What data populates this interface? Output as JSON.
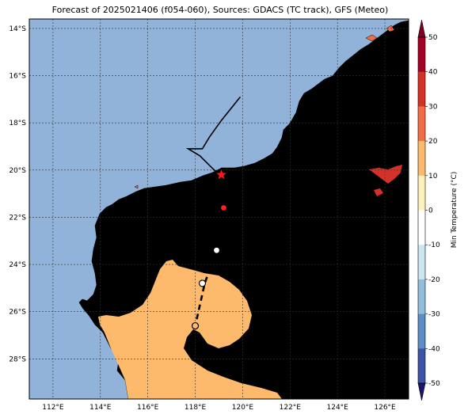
{
  "title": "Forecast of 2025021406 (f054-060), Sources: GDACS (TC track), GFS (Meteo)",
  "map": {
    "lat_ticks": [
      "14°S",
      "16°S",
      "18°S",
      "20°S",
      "22°S",
      "24°S",
      "26°S",
      "28°S"
    ],
    "lon_ticks": [
      "112°E",
      "114°E",
      "116°E",
      "118°E",
      "120°E",
      "122°E",
      "124°E",
      "126°E"
    ],
    "lon_range": [
      111,
      127
    ],
    "lat_range": [
      -29.7,
      -13.6
    ],
    "ocean_color": "#91b3d9",
    "land_color_20_30": "#f36d43",
    "land_color_10_20": "#fdb96c",
    "land_color_30_40": "#d63128"
  },
  "track": {
    "history": [
      [
        119.9,
        -16.9
      ],
      [
        119.1,
        -17.9
      ],
      [
        118.6,
        -18.6
      ],
      [
        118.3,
        -19.1
      ],
      [
        117.7,
        -19.1
      ],
      [
        118.2,
        -19.4
      ],
      [
        118.8,
        -20.0
      ],
      [
        119.1,
        -20.2
      ]
    ],
    "current_position": [
      119.1,
      -20.2
    ],
    "forecast": [
      [
        119.1,
        -20.2
      ],
      [
        119.2,
        -21.5
      ],
      [
        118.9,
        -23.4
      ],
      [
        118.4,
        -24.8
      ],
      [
        118.0,
        -26.6
      ]
    ],
    "forecast_points": [
      {
        "pos": [
          119.2,
          -21.6
        ],
        "fill": "#ff2020"
      },
      {
        "pos": [
          118.9,
          -23.4
        ],
        "fill": "#ffffff"
      },
      {
        "pos": [
          118.3,
          -24.8
        ],
        "fill": "#ffffff"
      },
      {
        "pos": [
          118.0,
          -26.6
        ],
        "fill": "#fdb96c"
      }
    ]
  },
  "colorbar": {
    "label": "Min Temperature (°C)",
    "ticks": [
      "-50",
      "-40",
      "-30",
      "-20",
      "-10",
      "0",
      "10",
      "20",
      "30",
      "40",
      "50"
    ],
    "colors": [
      "#2a1e8e",
      "#3d54a6",
      "#5b8ec2",
      "#91bedb",
      "#cce6f0",
      "#ffffff",
      "#fef0bb",
      "#fdb96c",
      "#f36d43",
      "#d63128",
      "#a50026"
    ]
  }
}
